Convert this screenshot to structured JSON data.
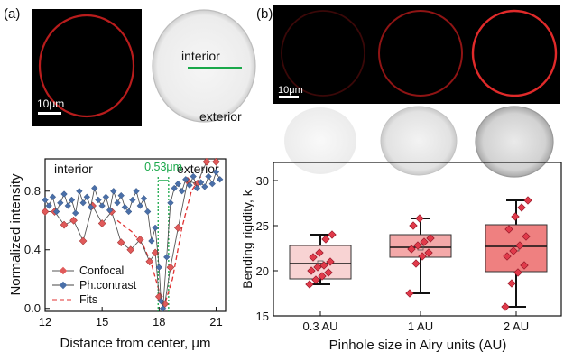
{
  "panel_a": {
    "label": "(a)",
    "scalebar": "10μm",
    "interior_label": "interior",
    "exterior_label": "exterior"
  },
  "panel_b": {
    "label": "(b)",
    "scalebar": "10μm",
    "confocal_intensities": [
      "dim",
      "medium",
      "bright"
    ]
  },
  "colors": {
    "confocal": "#e05a5a",
    "phase": "#4a6fa8",
    "fit": "#e03030",
    "green": "#1aa84a",
    "box_light": "#f8d3d3",
    "box_mid": "#f4a9a9",
    "box_strong": "#ef8080"
  },
  "chart_data": [
    {
      "type": "line",
      "panel": "a",
      "title": "",
      "xlabel": "Distance from center, μm",
      "ylabel": "Normalized intensity",
      "xlim": [
        12,
        21.5
      ],
      "ylim": [
        -0.02,
        1.02
      ],
      "xticks": [
        "12",
        "15",
        "18",
        "21"
      ],
      "yticks": [
        "0.0",
        "0.4",
        "0.8"
      ],
      "annotations": {
        "interior": "interior",
        "exterior": "exterior",
        "gap": "0.53μm"
      },
      "legend": [
        "Confocal",
        "Ph.contrast",
        "Fits"
      ],
      "legend_position": "bottom-left",
      "series": [
        {
          "name": "Confocal",
          "x": [
            12.0,
            12.5,
            13.0,
            13.5,
            14.0,
            14.5,
            15.0,
            15.5,
            16.0,
            16.5,
            17.0,
            17.5,
            17.8,
            18.0,
            18.3,
            18.6,
            19.0,
            19.5,
            20.0,
            20.5,
            21.0
          ],
          "y": [
            0.66,
            0.66,
            0.57,
            0.6,
            0.46,
            0.7,
            0.58,
            0.66,
            0.45,
            0.4,
            0.47,
            0.32,
            0.38,
            0.08,
            0.03,
            0.28,
            0.55,
            0.87,
            0.85,
            1.0,
            1.0
          ]
        },
        {
          "name": "Ph.contrast",
          "x": [
            12.0,
            12.2,
            12.4,
            12.6,
            12.8,
            13.0,
            13.2,
            13.4,
            13.6,
            13.8,
            14.0,
            14.2,
            14.4,
            14.6,
            14.8,
            15.0,
            15.2,
            15.4,
            15.6,
            15.8,
            16.0,
            16.2,
            16.4,
            16.6,
            16.8,
            17.0,
            17.2,
            17.4,
            17.6,
            17.8,
            18.0,
            18.1,
            18.2,
            18.4,
            18.6,
            18.8,
            19.0,
            19.2,
            19.4,
            19.6,
            19.8,
            20.0,
            20.2,
            20.4,
            20.6,
            20.8,
            21.0,
            21.2
          ],
          "y": [
            0.74,
            0.7,
            0.76,
            0.66,
            0.72,
            0.78,
            0.7,
            0.74,
            0.65,
            0.8,
            0.72,
            0.76,
            0.69,
            0.82,
            0.74,
            0.7,
            0.76,
            0.67,
            0.8,
            0.72,
            0.77,
            0.69,
            0.66,
            0.74,
            0.8,
            0.7,
            0.75,
            0.66,
            0.46,
            0.55,
            0.28,
            0.05,
            0.0,
            0.35,
            0.72,
            0.82,
            0.85,
            0.8,
            0.88,
            0.84,
            0.9,
            0.82,
            0.86,
            0.83,
            0.9,
            0.85,
            0.93,
            0.88
          ]
        },
        {
          "name": "Fits",
          "x": [
            15.8,
            16.6,
            17.2,
            17.6,
            18.0,
            18.3,
            18.7,
            19.2,
            19.7,
            20.2
          ],
          "y": [
            0.6,
            0.52,
            0.42,
            0.3,
            0.12,
            0.03,
            0.2,
            0.55,
            0.8,
            0.9
          ]
        }
      ]
    },
    {
      "type": "box",
      "panel": "b",
      "title": "",
      "xlabel": "Pinhole size in Airy units (AU)",
      "ylabel": "Bending rigidity, k_BT",
      "ylim": [
        15,
        32
      ],
      "yticks": [
        "15",
        "20",
        "25",
        "30"
      ],
      "categories": [
        "0.3 AU",
        "1 AU",
        "2 AU"
      ],
      "boxes": [
        {
          "q1": 19.1,
          "median": 20.8,
          "q3": 22.8,
          "whisker_low": 18.5,
          "whisker_high": 24.0,
          "mean": 20.8
        },
        {
          "q1": 21.5,
          "median": 22.6,
          "q3": 24.0,
          "whisker_low": 17.5,
          "whisker_high": 25.8,
          "mean": 22.6
        },
        {
          "q1": 19.9,
          "median": 22.7,
          "q3": 25.1,
          "whisker_low": 16.0,
          "whisker_high": 27.8,
          "mean": 22.5
        }
      ],
      "points": [
        [
          18.5,
          19.0,
          19.4,
          19.8,
          20.0,
          20.4,
          20.6,
          21.0,
          21.5,
          22.0,
          23.5,
          24.0
        ],
        [
          17.5,
          20.8,
          21.6,
          22.0,
          22.4,
          22.8,
          23.2,
          23.6,
          25.0,
          25.8
        ],
        [
          16.0,
          18.6,
          19.8,
          20.6,
          21.6,
          22.2,
          22.8,
          23.8,
          24.6,
          26.0,
          27.0,
          27.8
        ]
      ]
    }
  ]
}
